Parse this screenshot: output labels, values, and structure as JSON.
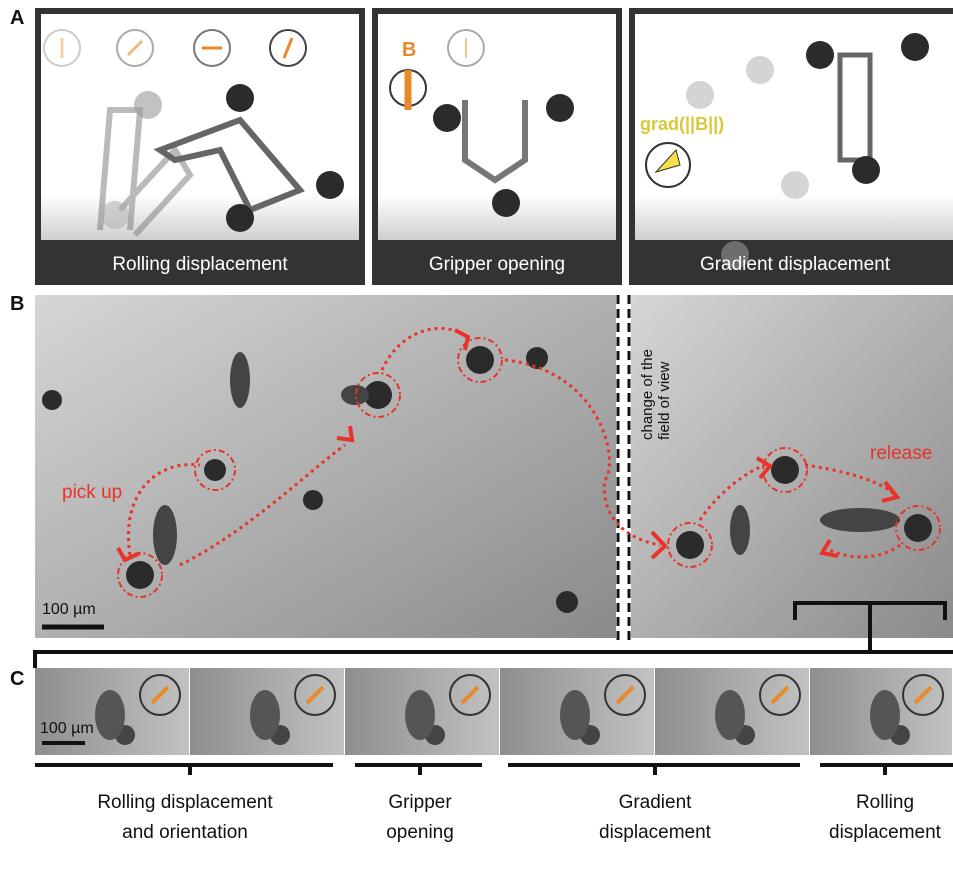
{
  "panel_a": {
    "label": "A",
    "panels": [
      {
        "caption": "Rolling displacement"
      },
      {
        "caption": "Gripper opening",
        "field_label": "B"
      },
      {
        "caption": "Gradient displacement",
        "gradient_label": "grad(||B||)"
      }
    ]
  },
  "panel_b": {
    "label": "B",
    "annotations": [
      "pick up",
      "release"
    ],
    "view_change": [
      "change of the",
      "field of view"
    ],
    "scale_bar": "100 µm"
  },
  "panel_c": {
    "label": "C",
    "scale_bar": "100 µm",
    "steps": [
      {
        "lines": [
          "Rolling displacement",
          "and orientation"
        ]
      },
      {
        "lines": [
          "Gripper",
          "opening"
        ]
      },
      {
        "lines": [
          "Gradient",
          "displacement"
        ]
      },
      {
        "lines": [
          "Rolling",
          "displacement"
        ]
      }
    ]
  }
}
